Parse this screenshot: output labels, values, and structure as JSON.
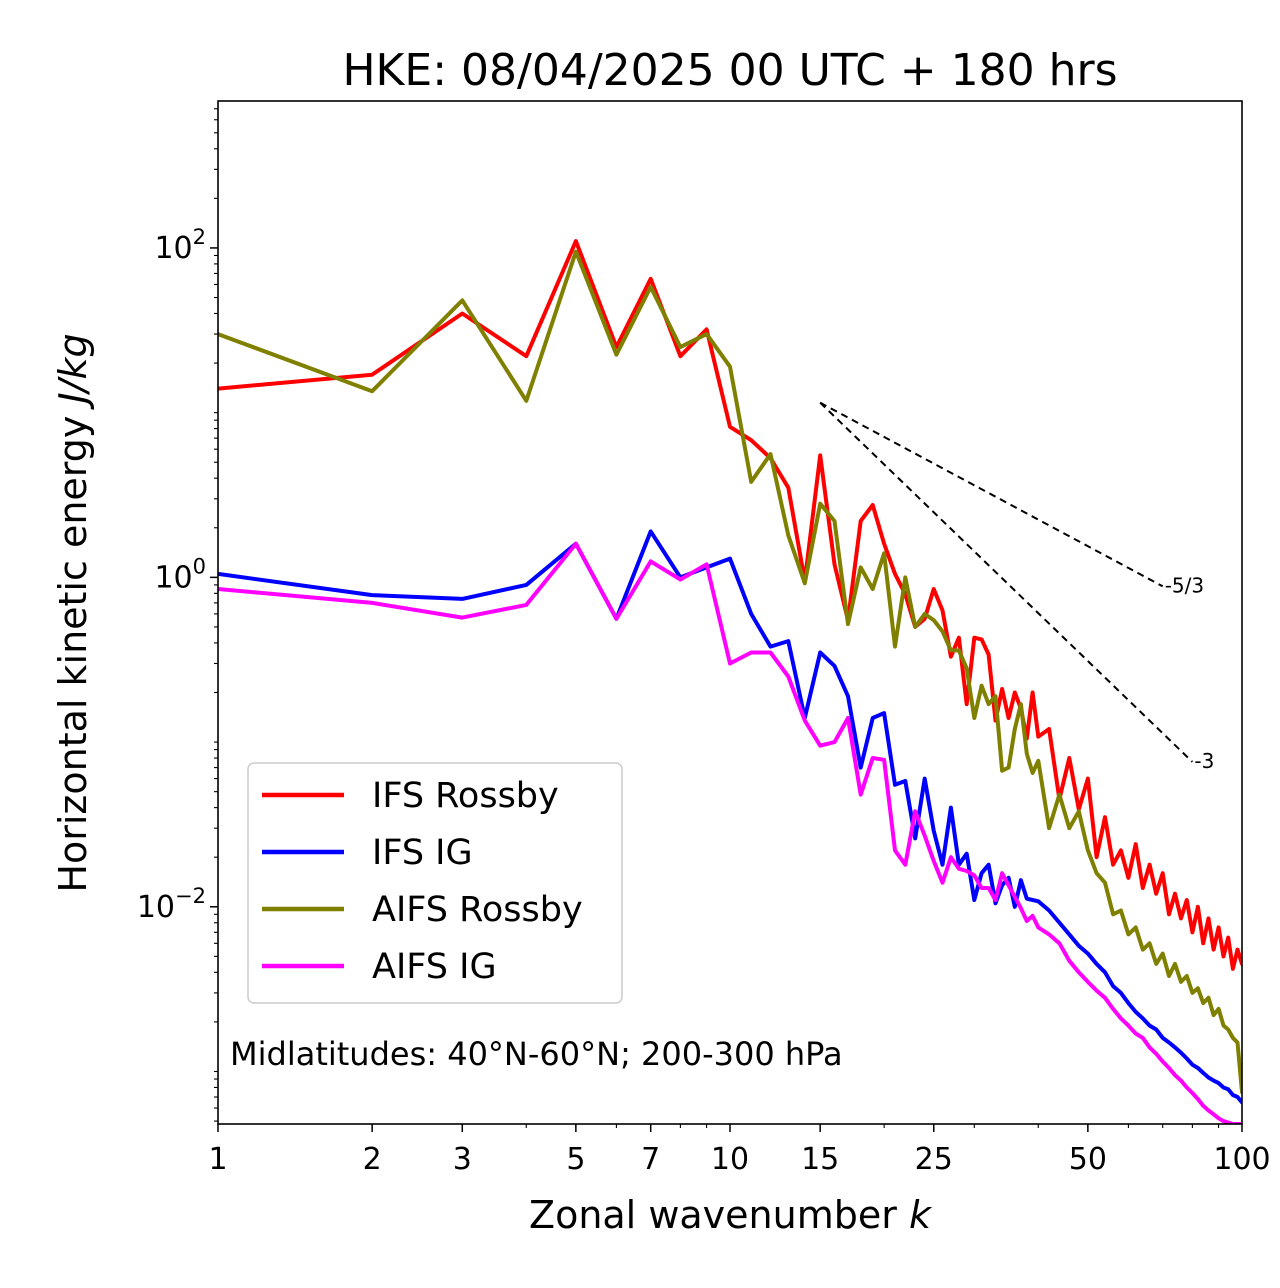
{
  "chart_data": {
    "type": "line",
    "title": "HKE: 08/04/2025 00 UTC + 180 hrs",
    "xlabel_text": "Zonal wavenumber ",
    "xlabel_italic": "k",
    "ylabel_text": "Horizontal kinetic energy ",
    "ylabel_italic": "J/kg",
    "x_scale": "log",
    "y_scale": "log",
    "xlim": [
      1,
      100
    ],
    "ylim": [
      0.00048,
      780
    ],
    "x_ticks": [
      {
        "value": 1,
        "label": "1"
      },
      {
        "value": 2,
        "label": "2"
      },
      {
        "value": 3,
        "label": "3"
      },
      {
        "value": 5,
        "label": "5"
      },
      {
        "value": 7,
        "label": "7"
      },
      {
        "value": 10,
        "label": "10"
      },
      {
        "value": 15,
        "label": "15"
      },
      {
        "value": 25,
        "label": "25"
      },
      {
        "value": 50,
        "label": "50"
      },
      {
        "value": 100,
        "label": "100"
      }
    ],
    "y_ticks": [
      {
        "value": 100,
        "base": "10",
        "exp": "2"
      },
      {
        "value": 1,
        "base": "10",
        "exp": "0"
      },
      {
        "value": 0.01,
        "base": "10",
        "exp": "−2"
      }
    ],
    "annotation": "Midlatitudes: 40°N-60°N; 200-300 hPa",
    "legend_position": "lower-left",
    "reference_lines": [
      {
        "label": "-5/3",
        "slope": -1.6667,
        "x": [
          15,
          70
        ],
        "y0": 11.5
      },
      {
        "label": "-3",
        "slope": -3,
        "x": [
          15,
          80
        ],
        "y0": 11.5
      }
    ],
    "series": [
      {
        "name": "IFS Rossby",
        "color": "#ff0000",
        "x": [
          1,
          2,
          3,
          4,
          5,
          6,
          7,
          8,
          9,
          10,
          11,
          12,
          13,
          14,
          15,
          16,
          17,
          18,
          19,
          20,
          21,
          22,
          23,
          24,
          25,
          26,
          27,
          28,
          29,
          30,
          31,
          32,
          33,
          34,
          35,
          36,
          37,
          38,
          39,
          40,
          42,
          44,
          46,
          48,
          50,
          52,
          54,
          56,
          58,
          60,
          62,
          64,
          66,
          68,
          70,
          72,
          74,
          76,
          78,
          80,
          82,
          84,
          86,
          88,
          90,
          92,
          94,
          96,
          98,
          100
        ],
        "y": [
          14,
          17,
          40,
          22,
          110,
          25,
          65,
          22,
          32,
          8.2,
          6.8,
          5.3,
          3.5,
          0.95,
          5.5,
          1.2,
          0.55,
          2.2,
          2.75,
          1.6,
          1.05,
          0.79,
          0.5,
          0.56,
          0.85,
          0.63,
          0.33,
          0.43,
          0.17,
          0.43,
          0.42,
          0.34,
          0.135,
          0.21,
          0.14,
          0.2,
          0.16,
          0.105,
          0.2,
          0.108,
          0.12,
          0.045,
          0.08,
          0.039,
          0.06,
          0.02,
          0.035,
          0.018,
          0.022,
          0.015,
          0.024,
          0.013,
          0.018,
          0.012,
          0.016,
          0.009,
          0.012,
          0.0085,
          0.011,
          0.007,
          0.01,
          0.006,
          0.0085,
          0.0055,
          0.0075,
          0.005,
          0.0065,
          0.0042,
          0.0055,
          0.0045
        ]
      },
      {
        "name": "IFS IG",
        "color": "#0000ff",
        "x": [
          1,
          2,
          3,
          4,
          5,
          6,
          7,
          8,
          9,
          10,
          11,
          12,
          13,
          14,
          15,
          16,
          17,
          18,
          19,
          20,
          21,
          22,
          23,
          24,
          25,
          26,
          27,
          28,
          29,
          30,
          31,
          32,
          33,
          34,
          35,
          36,
          37,
          38,
          39,
          40,
          42,
          44,
          46,
          48,
          50,
          52,
          54,
          56,
          58,
          60,
          62,
          64,
          66,
          68,
          70,
          72,
          74,
          76,
          78,
          80,
          82,
          84,
          86,
          88,
          90,
          92,
          94,
          96,
          98,
          100
        ],
        "y": [
          1.05,
          0.78,
          0.74,
          0.9,
          1.6,
          0.56,
          1.9,
          1.0,
          1.15,
          1.3,
          0.6,
          0.38,
          0.41,
          0.14,
          0.35,
          0.29,
          0.19,
          0.07,
          0.14,
          0.15,
          0.055,
          0.058,
          0.026,
          0.06,
          0.029,
          0.018,
          0.04,
          0.018,
          0.021,
          0.011,
          0.016,
          0.018,
          0.0105,
          0.0135,
          0.015,
          0.01,
          0.0145,
          0.0112,
          0.011,
          0.0108,
          0.0095,
          0.008,
          0.0068,
          0.0058,
          0.0052,
          0.0045,
          0.004,
          0.0033,
          0.003,
          0.0026,
          0.0023,
          0.0021,
          0.0019,
          0.0018,
          0.0016,
          0.0015,
          0.0014,
          0.0013,
          0.0012,
          0.0011,
          0.00105,
          0.00098,
          0.00092,
          0.00088,
          0.00085,
          0.0008,
          0.00078,
          0.00072,
          0.0007,
          0.00065
        ]
      },
      {
        "name": "AIFS Rossby",
        "color": "#808000",
        "x": [
          1,
          2,
          3,
          4,
          5,
          6,
          7,
          8,
          9,
          10,
          11,
          12,
          13,
          14,
          15,
          16,
          17,
          18,
          19,
          20,
          21,
          22,
          23,
          24,
          25,
          26,
          27,
          28,
          29,
          30,
          31,
          32,
          33,
          34,
          35,
          36,
          37,
          38,
          39,
          40,
          42,
          44,
          46,
          48,
          50,
          52,
          54,
          56,
          58,
          60,
          62,
          64,
          66,
          68,
          70,
          72,
          74,
          76,
          78,
          80,
          82,
          84,
          86,
          88,
          90,
          92,
          94,
          96,
          98,
          100
        ],
        "y": [
          30,
          13.5,
          48,
          11.8,
          95,
          22.5,
          58,
          25,
          30,
          19,
          3.8,
          5.6,
          1.8,
          0.92,
          2.8,
          2.2,
          0.52,
          1.15,
          0.85,
          1.4,
          0.38,
          1.0,
          0.5,
          0.6,
          0.55,
          0.47,
          0.36,
          0.36,
          0.28,
          0.14,
          0.22,
          0.17,
          0.19,
          0.067,
          0.07,
          0.12,
          0.17,
          0.085,
          0.065,
          0.077,
          0.03,
          0.048,
          0.03,
          0.038,
          0.022,
          0.016,
          0.014,
          0.009,
          0.0095,
          0.0068,
          0.0075,
          0.0055,
          0.006,
          0.0045,
          0.0052,
          0.0038,
          0.0045,
          0.0035,
          0.0038,
          0.003,
          0.0032,
          0.0026,
          0.0028,
          0.0022,
          0.0024,
          0.0019,
          0.0018,
          0.0016,
          0.0015,
          0.00075
        ]
      },
      {
        "name": "AIFS IG",
        "color": "#ff00ff",
        "x": [
          1,
          2,
          3,
          4,
          5,
          6,
          7,
          8,
          9,
          10,
          11,
          12,
          13,
          14,
          15,
          16,
          17,
          18,
          19,
          20,
          21,
          22,
          23,
          24,
          25,
          26,
          27,
          28,
          29,
          30,
          31,
          32,
          33,
          34,
          35,
          36,
          37,
          38,
          39,
          40,
          42,
          44,
          46,
          48,
          50,
          52,
          54,
          56,
          58,
          60,
          62,
          64,
          66,
          68,
          70,
          72,
          74,
          76,
          78,
          80,
          82,
          84,
          86,
          88,
          90,
          92,
          94,
          96,
          98,
          100
        ],
        "y": [
          0.85,
          0.7,
          0.57,
          0.68,
          1.6,
          0.56,
          1.25,
          0.97,
          1.2,
          0.3,
          0.35,
          0.35,
          0.25,
          0.135,
          0.095,
          0.1,
          0.14,
          0.048,
          0.08,
          0.078,
          0.022,
          0.018,
          0.038,
          0.027,
          0.019,
          0.014,
          0.02,
          0.017,
          0.0165,
          0.0155,
          0.013,
          0.013,
          0.011,
          0.016,
          0.0135,
          0.0115,
          0.0098,
          0.0082,
          0.0088,
          0.0075,
          0.0068,
          0.006,
          0.0047,
          0.004,
          0.0035,
          0.0031,
          0.0028,
          0.0024,
          0.0021,
          0.0019,
          0.0017,
          0.0016,
          0.0014,
          0.00128,
          0.00115,
          0.00105,
          0.00095,
          0.00088,
          0.0008,
          0.00074,
          0.00068,
          0.00062,
          0.00058,
          0.00055,
          0.00052,
          0.0005,
          0.00049,
          0.00048,
          0.00048,
          0.00048
        ]
      }
    ]
  }
}
